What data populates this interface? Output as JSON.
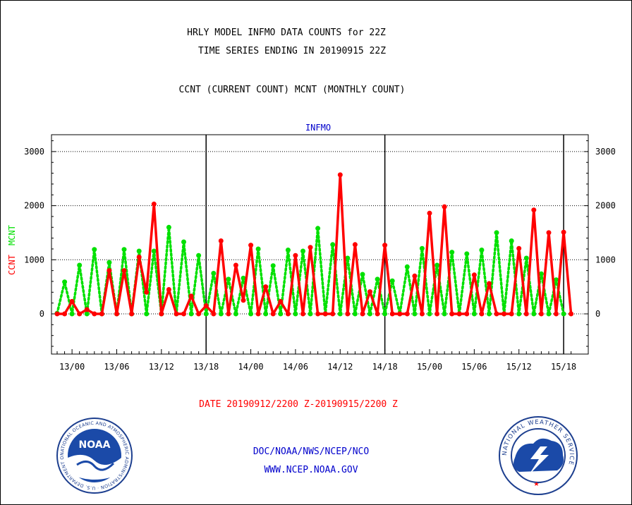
{
  "header": {
    "title_line1": "HRLY MODEL INFMO DATA COUNTS for 22Z",
    "title_line2": "TIME SERIES ENDING IN 20190915 22Z",
    "subtitle": "CCNT (CURRENT COUNT) MCNT (MONTHLY COUNT)"
  },
  "footer": {
    "date_range": "DATE 20190912/2200 Z-20190915/2200 Z",
    "credit_line1": "DOC/NOAA/NWS/NCEP/NCO",
    "credit_line2": "WWW.NCEP.NOAA.GOV"
  },
  "logos": {
    "left": {
      "icon": "noaa-logo",
      "center_text": "NOAA",
      "ring_text": "NATIONAL OCEANIC AND ATMOSPHERIC ADMINISTRATION · U.S. DEPARTMENT OF COMMERCE"
    },
    "right": {
      "icon": "nws-logo",
      "ring_text": "NATIONAL WEATHER SERVICE"
    }
  },
  "colors": {
    "ccnt": "#ff0000",
    "mcnt": "#00e000",
    "panel_title": "#0000cc",
    "credit": "#0000cc"
  },
  "chart_data": {
    "type": "line",
    "panel_title": "INFMO",
    "ylabel_parts": [
      "CCNT",
      "MCNT"
    ],
    "ylim": [
      -750,
      3300
    ],
    "yticks": [
      0,
      1000,
      2000,
      3000
    ],
    "xticks": [
      "13/00",
      "13/06",
      "13/12",
      "13/18",
      "14/00",
      "14/06",
      "14/12",
      "14/18",
      "15/00",
      "15/06",
      "15/12",
      "15/18"
    ],
    "x_start": "2019-09-12 22Z",
    "x_end": "2019-09-15 22Z",
    "day_boundaries": [
      "13/18",
      "14/18",
      "15/18"
    ],
    "grid": "horizontal dotted at y ticks",
    "series": [
      {
        "name": "CCNT",
        "color": "#ff0000",
        "values": [
          0,
          0,
          230,
          0,
          80,
          0,
          0,
          800,
          0,
          800,
          0,
          1050,
          400,
          2030,
          0,
          450,
          0,
          0,
          330,
          0,
          150,
          0,
          1350,
          0,
          900,
          250,
          1270,
          0,
          500,
          0,
          230,
          0,
          1080,
          0,
          1230,
          0,
          0,
          0,
          2570,
          0,
          1280,
          0,
          410,
          0,
          1270,
          0,
          0,
          0,
          700,
          0,
          1860,
          0,
          1980,
          0,
          0,
          0,
          720,
          0,
          560,
          0,
          0,
          0,
          1210,
          0,
          1920,
          0,
          1500,
          0,
          1510,
          0
        ]
      },
      {
        "name": "MCNT",
        "color": "#00e000",
        "values": [
          10,
          590,
          0,
          900,
          0,
          1190,
          0,
          950,
          0,
          1190,
          0,
          1160,
          0,
          1160,
          0,
          1600,
          0,
          1330,
          0,
          1080,
          0,
          750,
          0,
          640,
          0,
          660,
          0,
          1200,
          0,
          890,
          0,
          1180,
          0,
          1160,
          0,
          1580,
          0,
          1280,
          0,
          1030,
          0,
          730,
          0,
          640,
          0,
          610,
          0,
          870,
          0,
          1210,
          0,
          900,
          0,
          1140,
          0,
          1110,
          0,
          1180,
          0,
          1500,
          0,
          1350,
          0,
          1030,
          0,
          740,
          0,
          630,
          0
        ]
      }
    ]
  }
}
